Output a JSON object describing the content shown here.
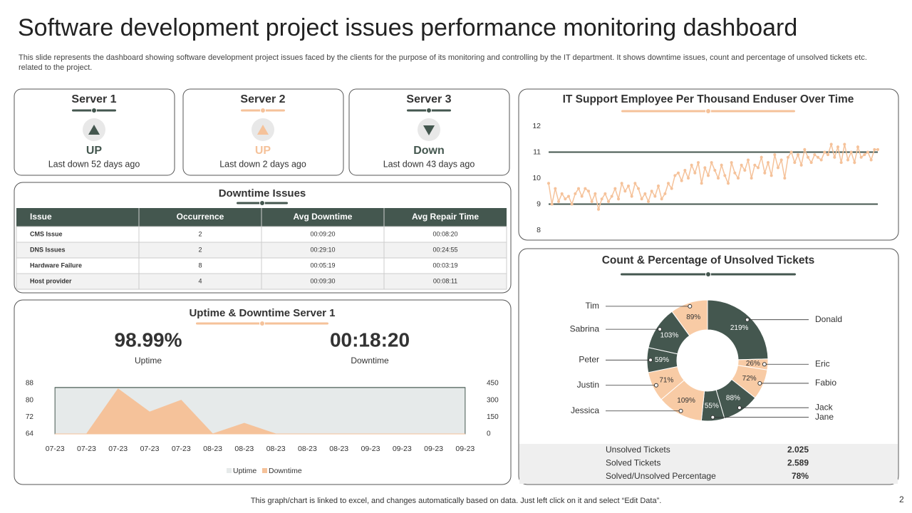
{
  "title": "Software development project issues performance monitoring dashboard",
  "subtitle": "This slide represents the dashboard showing software development project issues faced by the clients for the purpose of its monitoring and controlling by the IT department. It shows downtime issues, count and percentage of unsolved tickets etc. related to the project.",
  "servers": [
    {
      "name": "Server 1",
      "status": "UP",
      "last_down": "Last down 52 days ago",
      "color": "#44574f"
    },
    {
      "name": "Server 2",
      "status": "UP",
      "last_down": "Last down 2 days ago",
      "color": "#f5c29a"
    },
    {
      "name": "Server 3",
      "status": "Down",
      "last_down": "Last down 43 days ago",
      "color": "#44574f"
    }
  ],
  "downtime_table": {
    "title": "Downtime Issues",
    "columns": [
      "Issue",
      "Occurrence",
      "Avg Downtime",
      "Avg Repair Time"
    ],
    "rows": [
      [
        "CMS Issue",
        "2",
        "00:09:20",
        "00:08:20"
      ],
      [
        "DNS Issues",
        "2",
        "00:29:10",
        "00:24:55"
      ],
      [
        "Hardware Failure",
        "8",
        "00:05:19",
        "00:03:19"
      ],
      [
        "Host provider",
        "4",
        "00:09:30",
        "00:08:11"
      ]
    ]
  },
  "uptime_stats": [
    {
      "value": "98.99%",
      "label": "Uptime"
    },
    {
      "value": "00:18:20",
      "label": "Downtime"
    }
  ],
  "chart_data": [
    {
      "type": "area",
      "title": "Uptime & Downtime Server 1",
      "categories": [
        "07-23",
        "07-23",
        "07-23",
        "07-23",
        "07-23",
        "08-23",
        "08-23",
        "08-23",
        "08-23",
        "08-23",
        "09-23",
        "09-23",
        "09-23",
        "09-23"
      ],
      "series": [
        {
          "name": "Uptime",
          "color": "#e6eaea",
          "values": [
            86,
            86,
            86,
            86,
            86,
            86,
            86,
            86,
            86,
            86,
            86,
            86,
            86,
            86
          ]
        },
        {
          "name": "Downtime",
          "color": "#f5c29a",
          "axis": "y2",
          "values": [
            0,
            0,
            400,
            195,
            300,
            0,
            95,
            0,
            0,
            0,
            0,
            0,
            0,
            0
          ]
        }
      ],
      "ylim": [
        64,
        88
      ],
      "yticks": [
        64,
        72,
        80,
        88
      ],
      "y2lim": [
        0,
        450
      ],
      "y2ticks": [
        0,
        150,
        300,
        450
      ],
      "legend": "bottom"
    },
    {
      "type": "line",
      "title": "IT Support Employee Per Thousand Enduser Over Time",
      "color": "#f5c29a",
      "ylim": [
        8,
        12
      ],
      "yticks": [
        8,
        9,
        10,
        11,
        12
      ],
      "reference_lines": [
        11,
        9
      ],
      "reference_color": "#44574f",
      "values": [
        9.8,
        9.0,
        9.6,
        9.1,
        9.4,
        9.2,
        9.3,
        9.0,
        9.4,
        9.6,
        9.3,
        9.6,
        9.5,
        9.1,
        9.4,
        8.8,
        9.2,
        9.4,
        9.1,
        9.3,
        9.6,
        9.2,
        9.8,
        9.5,
        9.7,
        9.3,
        9.8,
        9.6,
        9.2,
        9.4,
        9.1,
        9.5,
        9.3,
        9.7,
        9.2,
        9.4,
        9.8,
        9.6,
        10.1,
        10.2,
        9.9,
        10.3,
        10.0,
        10.5,
        10.2,
        10.6,
        9.8,
        10.4,
        10.1,
        10.6,
        10.3,
        10.0,
        10.5,
        10.1,
        9.8,
        10.6,
        10.2,
        10.0,
        10.5,
        10.3,
        10.7,
        10.0,
        10.5,
        10.4,
        10.8,
        10.2,
        10.6,
        10.1,
        10.9,
        10.4,
        10.7,
        10.0,
        10.8,
        11.0,
        10.6,
        10.9,
        10.5,
        11.1,
        10.8,
        10.6,
        10.9,
        10.8,
        10.7,
        11.0,
        10.9,
        11.3,
        10.8,
        11.2,
        10.6,
        11.3,
        10.7,
        11.0,
        10.6,
        11.2,
        10.8,
        10.9,
        11.0,
        10.7,
        11.1,
        11.1
      ]
    },
    {
      "type": "donut",
      "title": "Count & Percentage of Unsolved Tickets",
      "categories": [
        "Donald",
        "Eric",
        "Fabio",
        "Jack",
        "Jane",
        "Jessica",
        "Justin",
        "Peter",
        "Sabrina",
        "Tim"
      ],
      "values": [
        219,
        26,
        72,
        88,
        55,
        109,
        71,
        59,
        103,
        89
      ],
      "value_labels": [
        "219%",
        "26%",
        "72%",
        "88%",
        "55%",
        "109%",
        "71%",
        "59%",
        "103%",
        "89%"
      ],
      "colors": [
        "#44574f",
        "#f8cba5",
        "#f8cba5",
        "#44574f",
        "#44574f",
        "#f8cba5",
        "#f8cba5",
        "#44574f",
        "#44574f",
        "#f8cba5"
      ]
    }
  ],
  "ticket_summary": {
    "rows": [
      [
        "Unsolved Tickets",
        "2.025"
      ],
      [
        "Solved Tickets",
        "2.589"
      ],
      [
        "Solved/Unsolved Percentage",
        "78%"
      ]
    ]
  },
  "footer": "This graph/chart is linked to excel,  and changes automatically based on data. Just left click on it and select “Edit Data”.",
  "page_number": "2"
}
